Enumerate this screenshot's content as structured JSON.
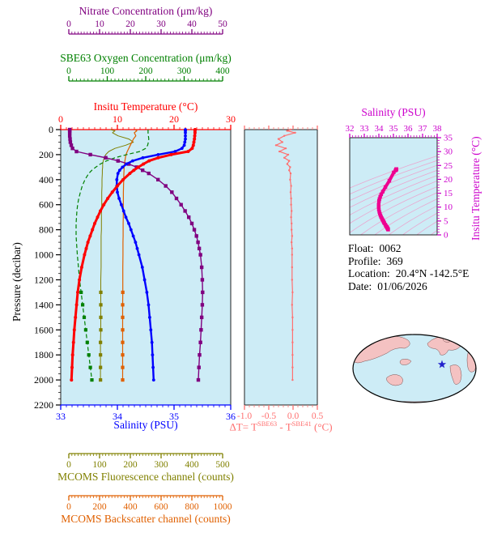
{
  "style": {
    "plot_bg": "#cdecf6",
    "contour": "#e9a8d0",
    "ts_curve": "#ee0090",
    "frame": "#222222"
  },
  "info": {
    "float_label": "Float:",
    "float_value": "0062",
    "profile_label": "Profile:",
    "profile_value": "369",
    "location_label": "Location:",
    "location_value": "20.4°N  -142.5°E",
    "date_label": "Date:",
    "date_value": "01/06/2026"
  },
  "map": {
    "ocean": "#cdecf6",
    "land": "#f4c2c2",
    "outline": "#7a5252",
    "star_color": "#2222cc"
  },
  "axes": {
    "nitrate": {
      "title": "Nitrate Concentration (μm/kg)",
      "min": 0,
      "max": 50,
      "ticks": [
        0,
        10,
        20,
        30,
        40,
        50
      ],
      "color": "#800080"
    },
    "oxygen": {
      "title": "SBE63 Oxygen Concentration (μm/kg)",
      "min": 0,
      "max": 400,
      "ticks": [
        0,
        100,
        200,
        300,
        400
      ],
      "color": "#008000"
    },
    "temperature": {
      "title": "Insitu Temperature (°C)",
      "min": 0,
      "max": 30,
      "ticks": [
        0,
        10,
        20,
        30
      ],
      "color": "#ff0000"
    },
    "pressure": {
      "title": "Pressure (decibar)",
      "min": 0,
      "max": 2200,
      "ticks": [
        0,
        200,
        400,
        600,
        800,
        1000,
        1200,
        1400,
        1600,
        1800,
        2000,
        2200
      ],
      "color": "#000000"
    },
    "salinity": {
      "title": "Salinity (PSU)",
      "min": 33,
      "max": 36,
      "ticks": [
        33,
        34,
        35,
        36
      ],
      "color": "#0000ff"
    },
    "fluorescence": {
      "title": "MCOMS Fluorescence channel (counts)",
      "min": 0,
      "max": 500,
      "ticks": [
        0,
        100,
        200,
        300,
        400,
        500
      ],
      "color": "#808000"
    },
    "backscatter": {
      "title": "MCOMS Backscatter channel (counts)",
      "min": 0,
      "max": 1000,
      "ticks": [
        0,
        200,
        400,
        600,
        800,
        1000
      ],
      "color": "#e06000"
    },
    "delta_t": {
      "title_parts": {
        "pre": "ΔT= T",
        "sup1": "SBE63",
        "mid": " - T",
        "sup2": "SBE41",
        "post": " (°C)"
      },
      "min": -1.0,
      "max": 0.5,
      "ticks": [
        "-1.0",
        "-0.5",
        "0.0",
        "0.5"
      ],
      "color": "#ff7070"
    },
    "ts_salinity": {
      "title": "Salinity (PSU)",
      "min": 32,
      "max": 38,
      "ticks": [
        32,
        33,
        34,
        35,
        36,
        37,
        38
      ],
      "color": "#cc00cc"
    },
    "ts_temperature": {
      "title": "Insitu Temperature (°C)",
      "min": 0,
      "max": 35,
      "ticks": [
        0,
        5,
        10,
        15,
        20,
        25,
        30,
        35
      ],
      "color": "#cc00cc"
    }
  },
  "chart_data": {
    "type": "line",
    "description": "Profiling float data: vertical profiles vs pressure (left), SBE63-SBE41 temperature difference vs pressure (middle), T-S diagram with isopycnal contours (upper right), float location map (lower right).",
    "pressure_db": [
      0,
      10,
      25,
      50,
      75,
      100,
      125,
      150,
      175,
      200,
      225,
      250,
      275,
      300,
      325,
      350,
      400,
      450,
      500,
      550,
      600,
      650,
      700,
      750,
      800,
      850,
      900,
      950,
      1000,
      1100,
      1200,
      1300,
      1400,
      1500,
      1600,
      1700,
      1800,
      1900,
      2000
    ],
    "series": [
      {
        "name": "Insitu Temperature",
        "units": "°C",
        "axis": "temperature",
        "color": "#ff0000",
        "values": [
          23.7,
          23.7,
          23.7,
          23.65,
          23.6,
          23.5,
          23.4,
          23.2,
          22.5,
          19.5,
          17.2,
          15.6,
          14.6,
          13.7,
          12.9,
          12.2,
          11.0,
          10.0,
          9.1,
          8.3,
          7.6,
          7.0,
          6.5,
          6.0,
          5.6,
          5.2,
          4.8,
          4.5,
          4.2,
          3.7,
          3.3,
          3.0,
          2.8,
          2.6,
          2.4,
          2.25,
          2.1,
          2.0,
          1.9
        ]
      },
      {
        "name": "Salinity",
        "units": "PSU",
        "axis": "salinity",
        "color": "#0000ff",
        "values": [
          35.2,
          35.2,
          35.2,
          35.2,
          35.2,
          35.19,
          35.18,
          35.14,
          35.02,
          34.72,
          34.45,
          34.27,
          34.16,
          34.09,
          34.04,
          34.01,
          33.99,
          33.99,
          34.0,
          34.03,
          34.07,
          34.11,
          34.15,
          34.2,
          34.24,
          34.28,
          34.32,
          34.35,
          34.38,
          34.44,
          34.48,
          34.52,
          34.55,
          34.57,
          34.59,
          34.61,
          34.62,
          34.63,
          34.64
        ]
      },
      {
        "name": "Nitrate Concentration",
        "units": "μm/kg",
        "axis": "nitrate",
        "color": "#800080",
        "values": [
          0.3,
          0.3,
          0.3,
          0.3,
          0.4,
          0.5,
          0.8,
          1.2,
          2.5,
          7,
          12,
          16,
          19.5,
          22,
          24,
          26,
          29,
          31.5,
          33.5,
          35,
          36.5,
          37.8,
          39,
          40,
          40.8,
          41.5,
          42,
          42.4,
          42.8,
          43.2,
          43.4,
          43.5,
          43.4,
          43.2,
          43.0,
          42.8,
          42.5,
          42.3,
          42.1
        ]
      },
      {
        "name": "SBE63 Oxygen Concentration",
        "units": "μm/kg",
        "axis": "oxygen",
        "color": "#008000",
        "values": [
          206,
          206,
          206,
          207,
          208,
          207,
          205,
          200,
          185,
          150,
          120,
          98,
          82,
          70,
          60,
          52,
          42,
          35,
          30,
          26,
          23,
          21,
          20,
          19,
          19,
          19,
          20,
          21,
          22,
          25,
          28,
          32,
          36,
          40,
          44,
          48,
          52,
          56,
          60
        ]
      },
      {
        "name": "MCOMS Fluorescence channel",
        "units": "counts",
        "axis": "fluorescence",
        "color": "#808000",
        "values": [
          135,
          150,
          142,
          160,
          195,
          210,
          185,
          150,
          130,
          120,
          115,
          112,
          110,
          110,
          109,
          109,
          108,
          108,
          107,
          107,
          107,
          106,
          106,
          106,
          106,
          105,
          105,
          105,
          105,
          105,
          104,
          104,
          104,
          104,
          104,
          103,
          103,
          103,
          103
        ]
      },
      {
        "name": "MCOMS Backscatter channel",
        "units": "counts",
        "axis": "backscatter",
        "color": "#e06000",
        "values": [
          430,
          442,
          426,
          436,
          420,
          410,
          400,
          390,
          380,
          372,
          368,
          365,
          362,
          360,
          359,
          358,
          357,
          356,
          355,
          355,
          354,
          354,
          354,
          353,
          353,
          353,
          352,
          352,
          352,
          351,
          351,
          351,
          350,
          350,
          350,
          350,
          350,
          350,
          350
        ]
      }
    ],
    "delta_t": {
      "name": "ΔT = T(SBE63) - T(SBE41)",
      "units": "°C",
      "values": [
        -0.05,
        -0.12,
        0.04,
        -0.18,
        -0.3,
        -0.22,
        -0.35,
        -0.15,
        -0.28,
        -0.1,
        -0.18,
        -0.08,
        -0.12,
        -0.06,
        -0.08,
        -0.05,
        -0.06,
        -0.04,
        -0.05,
        -0.04,
        -0.04,
        -0.03,
        -0.04,
        -0.03,
        -0.03,
        -0.02,
        -0.03,
        -0.02,
        -0.02,
        -0.02,
        -0.02,
        -0.01,
        -0.02,
        -0.01,
        -0.01,
        -0.01,
        -0.01,
        -0.01,
        -0.01
      ]
    }
  }
}
